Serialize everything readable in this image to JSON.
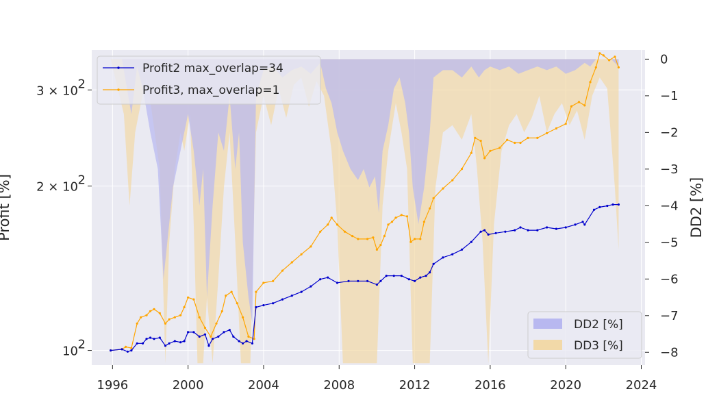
{
  "chart_data": {
    "type": "line",
    "title": "",
    "xlabel": "",
    "ylabel": "Profit [%]",
    "ylabel_right": "DD2 [%]",
    "xlim": [
      1994.9,
      2024.2
    ],
    "ylim": [
      94,
      355
    ],
    "yscale": "log",
    "ylim_right": [
      -8.35,
      0.25
    ],
    "grid": true,
    "legend_top": {
      "placement": "top-left",
      "entries": [
        {
          "name": "Profit2 max_overlap=34",
          "color": "#0000cc"
        },
        {
          "name": "Profit3, max_overlap=1",
          "color": "#ffa500"
        }
      ]
    },
    "legend_bottom": {
      "placement": "bottom-right",
      "entries": [
        {
          "name": "DD2 [%]",
          "color": "#b8b8f0"
        },
        {
          "name": "DD3 [%]",
          "color": "#f2d9a8"
        }
      ]
    },
    "x_ticks": [
      {
        "value": 1996,
        "label": "1996"
      },
      {
        "value": 2000,
        "label": "2000"
      },
      {
        "value": 2004,
        "label": "2004"
      },
      {
        "value": 2008,
        "label": "2008"
      },
      {
        "value": 2012,
        "label": "2012"
      },
      {
        "value": 2016,
        "label": "2016"
      },
      {
        "value": 2020,
        "label": "2020"
      },
      {
        "value": 2024,
        "label": "2024"
      }
    ],
    "y_ticks_left": [
      {
        "value": 100,
        "label": "10",
        "sup": "2"
      },
      {
        "value": 200,
        "label": "2 × 10",
        "sup": "2"
      },
      {
        "value": 300,
        "label": "3 × 10",
        "sup": "2"
      }
    ],
    "y_ticks_right": [
      {
        "value": 0,
        "label": "0"
      },
      {
        "value": -1,
        "label": "−1"
      },
      {
        "value": -2,
        "label": "−2"
      },
      {
        "value": -3,
        "label": "−3"
      },
      {
        "value": -4,
        "label": "−4"
      },
      {
        "value": -5,
        "label": "−5"
      },
      {
        "value": -6,
        "label": "−6"
      },
      {
        "value": -7,
        "label": "−7"
      },
      {
        "value": -8,
        "label": "−8"
      }
    ],
    "series": [
      {
        "name": "Profit2 max_overlap=34",
        "color": "#0000cc",
        "x": [
          1995.9,
          1996.5,
          1996.8,
          1997.0,
          1997.3,
          1997.6,
          1997.8,
          1998.0,
          1998.2,
          1998.5,
          1998.8,
          1999.0,
          1999.3,
          1999.6,
          1999.8,
          2000.0,
          2000.3,
          2000.6,
          2000.9,
          2001.1,
          2001.3,
          2001.6,
          2001.9,
          2002.2,
          2002.4,
          2002.7,
          2002.9,
          2003.1,
          2003.4,
          2003.6,
          2004.0,
          2004.5,
          2005.0,
          2005.5,
          2006.0,
          2006.5,
          2007.0,
          2007.4,
          2007.9,
          2008.5,
          2009.0,
          2009.5,
          2010.0,
          2010.2,
          2010.5,
          2010.9,
          2011.3,
          2011.7,
          2012.0,
          2012.3,
          2012.6,
          2012.8,
          2013.0,
          2013.5,
          2014.0,
          2014.5,
          2015.0,
          2015.5,
          2015.7,
          2015.9,
          2016.3,
          2016.8,
          2017.3,
          2017.6,
          2018.0,
          2018.5,
          2019.0,
          2019.5,
          2020.0,
          2020.5,
          2020.9,
          2021.0,
          2021.5,
          2021.8,
          2022.2,
          2022.5,
          2022.8
        ],
        "y": [
          100,
          100.5,
          99.5,
          100,
          103,
          103,
          105,
          105.5,
          105,
          105.5,
          102,
          103,
          104,
          103.5,
          104,
          108,
          108,
          106,
          107,
          102,
          105,
          106,
          108,
          109,
          106,
          104,
          103,
          104,
          103,
          120,
          121,
          122,
          124,
          126,
          128,
          131,
          135,
          136,
          133,
          134,
          134,
          134,
          132,
          134,
          137,
          137,
          137,
          135,
          134,
          136,
          137,
          139,
          144,
          148,
          150,
          153,
          158,
          165,
          166,
          163,
          164,
          165,
          166,
          168,
          166,
          166,
          168,
          167,
          168,
          170,
          172,
          170,
          181,
          183,
          184,
          185,
          185
        ]
      },
      {
        "name": "Profit3, max_overlap=1",
        "color": "#ffa500",
        "x": [
          1995.9,
          1996.5,
          1996.7,
          1997.0,
          1997.3,
          1997.5,
          1997.8,
          1998.0,
          1998.2,
          1998.5,
          1998.8,
          1999.0,
          1999.3,
          1999.6,
          1999.8,
          2000.0,
          2000.3,
          2000.6,
          2000.9,
          2001.2,
          2001.5,
          2001.8,
          2002.0,
          2002.3,
          2002.6,
          2002.9,
          2003.2,
          2003.5,
          2003.6,
          2004.0,
          2004.5,
          2005.0,
          2005.5,
          2006.0,
          2006.5,
          2007.0,
          2007.4,
          2007.6,
          2007.9,
          2008.3,
          2008.7,
          2009.0,
          2009.5,
          2009.8,
          2010.0,
          2010.2,
          2010.4,
          2010.6,
          2010.8,
          2011.0,
          2011.3,
          2011.6,
          2011.8,
          2012.0,
          2012.3,
          2012.5,
          2012.8,
          2013.0,
          2013.5,
          2014.0,
          2014.5,
          2015.0,
          2015.2,
          2015.5,
          2015.7,
          2016.0,
          2016.5,
          2016.9,
          2017.3,
          2017.6,
          2018.0,
          2018.5,
          2019.0,
          2019.5,
          2020.0,
          2020.3,
          2020.7,
          2021.0,
          2021.3,
          2021.6,
          2021.8,
          2022.0,
          2022.3,
          2022.6,
          2022.8
        ],
        "y": [
          100,
          100.5,
          101.5,
          101,
          112,
          115,
          116,
          118,
          119,
          117,
          112,
          114,
          115,
          116,
          120,
          125,
          124,
          115,
          110,
          106,
          112,
          118,
          126,
          128,
          122,
          115,
          106,
          105,
          128,
          133,
          134,
          140,
          145,
          150,
          155,
          165,
          170,
          175,
          170,
          165,
          162,
          160,
          160,
          161,
          153,
          156,
          162,
          170,
          172,
          175,
          177,
          176,
          158,
          160,
          160,
          172,
          182,
          190,
          198,
          205,
          215,
          230,
          245,
          242,
          225,
          232,
          235,
          243,
          240,
          240,
          245,
          245,
          250,
          255,
          260,
          280,
          285,
          281,
          310,
          330,
          350,
          347,
          340,
          345,
          330
        ]
      },
      {
        "name": "DD2 [%]",
        "color": "#b8b8f0",
        "x": [
          1995.9,
          1996.5,
          1996.7,
          1997.0,
          1997.3,
          1997.6,
          1998.0,
          1998.4,
          1998.7,
          1998.9,
          1999.2,
          1999.6,
          2000.0,
          2000.3,
          2000.6,
          2000.8,
          2001.0,
          2001.3,
          2001.6,
          2001.9,
          2002.2,
          2002.5,
          2002.7,
          2002.9,
          2003.2,
          2003.4,
          2003.6,
          2004.0,
          2004.5,
          2005.0,
          2005.5,
          2006.0,
          2006.5,
          2007.0,
          2007.3,
          2007.6,
          2007.9,
          2008.2,
          2008.6,
          2009.0,
          2009.3,
          2009.6,
          2009.9,
          2010.1,
          2010.3,
          2010.6,
          2010.9,
          2011.2,
          2011.5,
          2011.7,
          2011.9,
          2012.2,
          2012.5,
          2012.8,
          2013.0,
          2013.5,
          2014.0,
          2014.5,
          2015.0,
          2015.4,
          2015.7,
          2016.0,
          2016.5,
          2017.0,
          2017.5,
          2018.0,
          2018.5,
          2019.0,
          2019.5,
          2020.0,
          2020.5,
          2021.0,
          2021.3,
          2021.6,
          2022.0,
          2022.4,
          2022.8
        ],
        "y": [
          0,
          0,
          -0.6,
          -1.5,
          -0.2,
          -0.8,
          -2.0,
          -3.0,
          -6.0,
          -5.0,
          -3.5,
          -2.5,
          -1.5,
          -2.5,
          -4.0,
          -3.0,
          -6.5,
          -4.0,
          -2.0,
          -2.5,
          -1.0,
          -3.0,
          -2.0,
          -5.0,
          -6.5,
          -7.2,
          -1.0,
          -0.3,
          -0.2,
          -0.5,
          -0.3,
          -0.2,
          -0.4,
          -0.1,
          -0.8,
          -1.2,
          -2.0,
          -2.5,
          -3.0,
          -3.3,
          -3.0,
          -3.5,
          -3.2,
          -4.2,
          -2.5,
          -1.8,
          -0.8,
          -0.5,
          -1.2,
          -2.0,
          -3.5,
          -4.5,
          -3.5,
          -2.0,
          -0.5,
          -0.3,
          -0.3,
          -0.5,
          -0.2,
          -0.5,
          -0.3,
          -0.2,
          -0.3,
          -0.2,
          -0.4,
          -0.3,
          -0.2,
          -0.3,
          -0.2,
          -0.4,
          -0.3,
          -0.1,
          -0.2,
          0,
          0,
          0,
          -0.2
        ]
      },
      {
        "name": "DD3 [%]",
        "color": "#f2d9a8",
        "x": [
          1995.9,
          1996.6,
          1996.9,
          1997.2,
          1997.5,
          1997.8,
          1998.1,
          1998.5,
          1998.8,
          1999.0,
          1999.3,
          1999.6,
          1999.8,
          2000.1,
          2000.3,
          2000.5,
          2000.8,
          2001.0,
          2001.3,
          2001.6,
          2001.9,
          2002.2,
          2002.5,
          2002.8,
          2003.0,
          2003.3,
          2003.6,
          2004.0,
          2004.4,
          2004.8,
          2005.2,
          2005.6,
          2006.0,
          2006.4,
          2006.8,
          2007.2,
          2007.6,
          2007.9,
          2008.2,
          2008.5,
          2009.0,
          2009.5,
          2010.0,
          2010.3,
          2010.6,
          2011.0,
          2011.3,
          2011.6,
          2011.9,
          2012.2,
          2012.5,
          2012.8,
          2013.1,
          2013.5,
          2014.0,
          2014.5,
          2015.0,
          2015.3,
          2015.6,
          2015.9,
          2016.2,
          2016.6,
          2017.0,
          2017.4,
          2017.8,
          2018.2,
          2018.6,
          2019.0,
          2019.4,
          2019.8,
          2020.2,
          2020.6,
          2021.0,
          2021.4,
          2021.8,
          2022.2,
          2022.6,
          2022.8
        ],
        "y": [
          0,
          -1.5,
          -4.0,
          -2.0,
          -1.2,
          -0.5,
          -1.5,
          -3.0,
          -8.3,
          -5.0,
          -3.0,
          -2.0,
          -2.5,
          -1.5,
          -4.5,
          -8.3,
          -8.3,
          -6.5,
          -8.3,
          -6.0,
          -3.5,
          -2.0,
          -5.0,
          -8.3,
          -8.3,
          -8.3,
          -2.0,
          -1.0,
          -1.8,
          -0.8,
          -1.6,
          -0.7,
          -0.5,
          -1.3,
          -0.6,
          -1.0,
          -2.5,
          -4.5,
          -8.3,
          -8.3,
          -8.3,
          -8.3,
          -8.3,
          -4.0,
          -2.5,
          -1.2,
          -2.0,
          -3.0,
          -8.3,
          -8.3,
          -8.3,
          -8.3,
          -3.5,
          -2.0,
          -1.8,
          -2.2,
          -1.5,
          -3.0,
          -5.0,
          -8.3,
          -4.5,
          -2.5,
          -1.8,
          -1.5,
          -2.0,
          -1.6,
          -1.0,
          -2.0,
          -1.5,
          -1.2,
          -1.8,
          -1.4,
          -2.2,
          -1.0,
          -0.5,
          -0.8,
          -3.5,
          -5.2
        ]
      }
    ]
  }
}
